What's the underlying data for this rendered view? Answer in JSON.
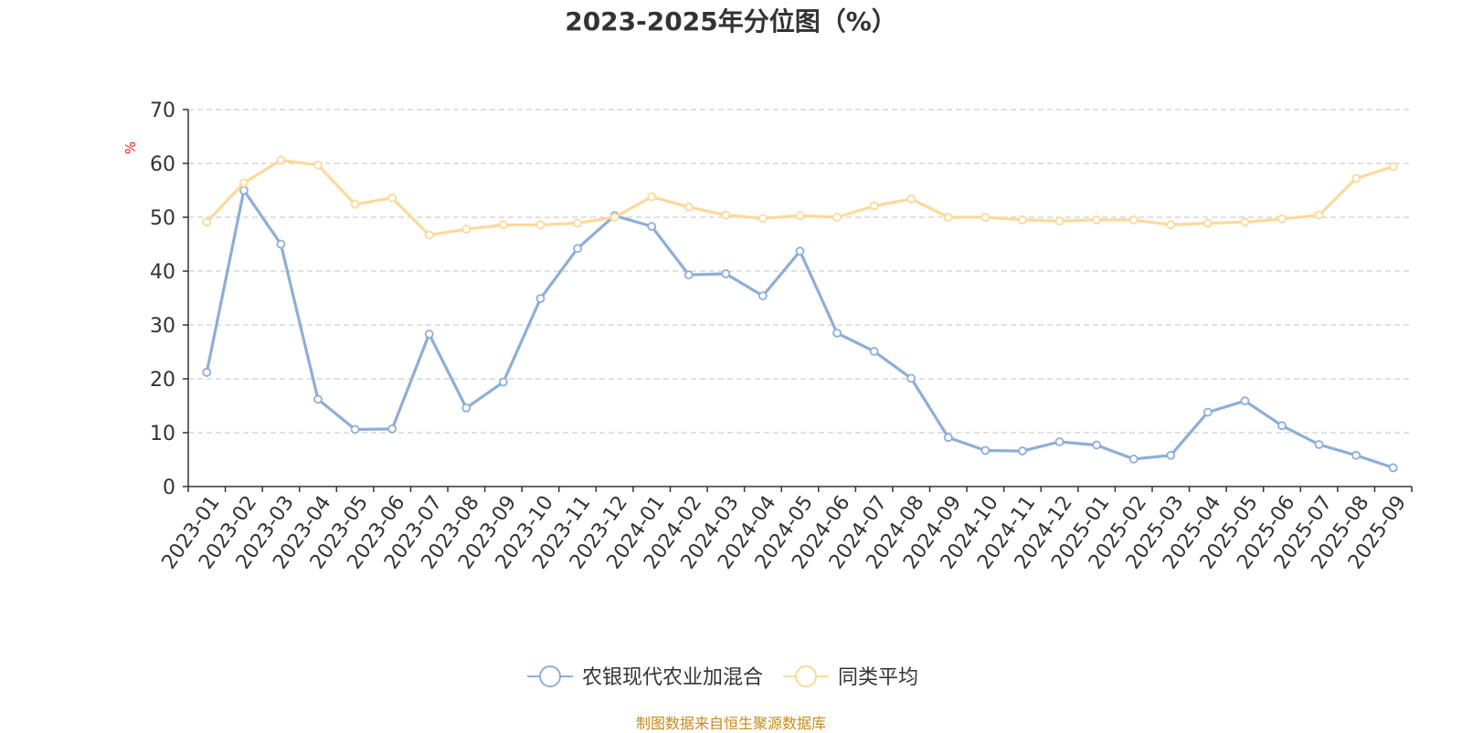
{
  "chart_data": {
    "type": "line",
    "title": "2023-2025年分位图（%）",
    "ylabel": "%",
    "xlabel": "",
    "ylim": [
      0,
      70
    ],
    "yticks": [
      0,
      10,
      20,
      30,
      40,
      50,
      60,
      70
    ],
    "grid": "horizontal-dashed",
    "legend_position": "bottom-center",
    "categories": [
      "2023-01",
      "2023-02",
      "2023-03",
      "2023-04",
      "2023-05",
      "2023-06",
      "2023-07",
      "2023-08",
      "2023-09",
      "2023-10",
      "2023-11",
      "2023-12",
      "2024-01",
      "2024-02",
      "2024-03",
      "2024-04",
      "2024-05",
      "2024-06",
      "2024-07",
      "2024-08",
      "2024-09",
      "2024-10",
      "2024-11",
      "2024-12",
      "2025-01",
      "2025-02",
      "2025-03",
      "2025-04",
      "2025-05",
      "2025-06",
      "2025-07",
      "2025-08",
      "2025-09"
    ],
    "series": [
      {
        "name": "农银现代农业加混合",
        "color": "#8eaed8",
        "values": [
          21.2,
          55.0,
          45.0,
          16.2,
          10.6,
          10.7,
          28.3,
          14.6,
          19.4,
          34.9,
          44.2,
          50.3,
          48.3,
          39.3,
          39.5,
          35.4,
          43.7,
          28.5,
          25.1,
          20.1,
          9.1,
          6.7,
          6.6,
          8.3,
          7.7,
          5.1,
          5.8,
          13.8,
          15.9,
          11.3,
          7.8,
          5.8,
          3.5
        ]
      },
      {
        "name": "同类平均",
        "color": "#fcd99b",
        "values": [
          49.1,
          56.4,
          60.6,
          59.7,
          52.4,
          53.6,
          46.7,
          47.8,
          48.6,
          48.6,
          48.9,
          50.0,
          53.8,
          51.9,
          50.4,
          49.8,
          50.3,
          50.0,
          52.1,
          53.4,
          50.0,
          50.0,
          49.5,
          49.3,
          49.5,
          49.5,
          48.6,
          48.9,
          49.1,
          49.7,
          50.4,
          57.2,
          59.4
        ]
      }
    ]
  },
  "source_note": "制图数据来自恒生聚源数据库"
}
